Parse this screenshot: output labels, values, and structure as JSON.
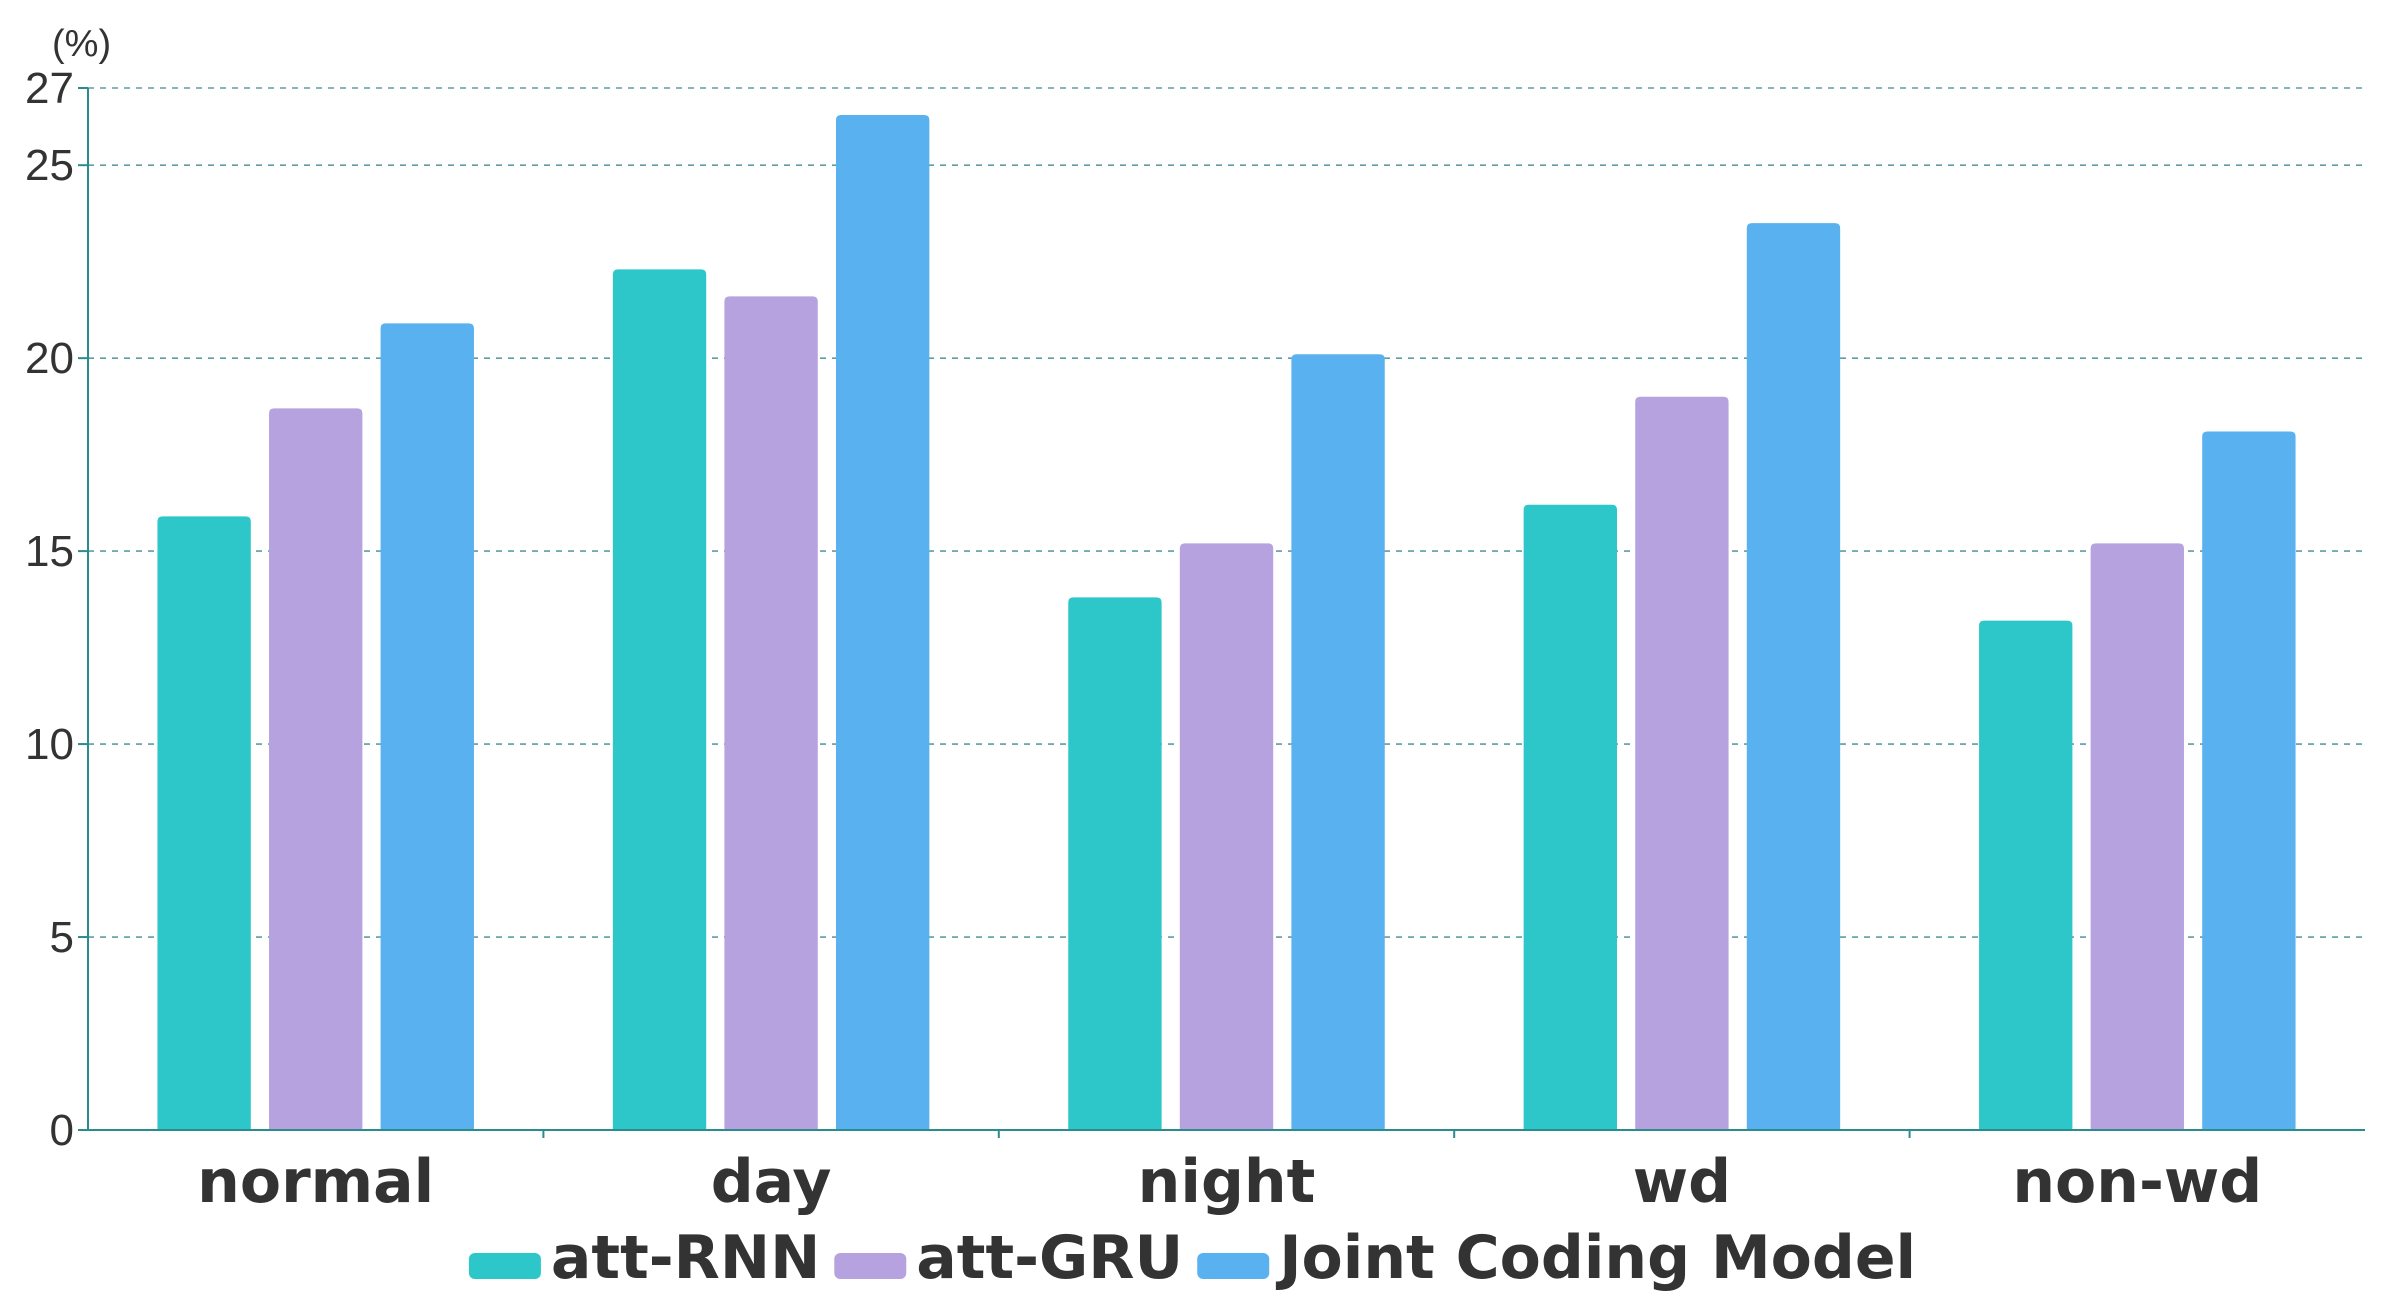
{
  "chart_data": {
    "type": "bar",
    "categories": [
      "normal",
      "day",
      "night",
      "wd",
      "non-wd"
    ],
    "series": [
      {
        "name": "att-RNN",
        "color": "#2ec7c9",
        "values": [
          15.9,
          22.3,
          13.8,
          16.2,
          13.2
        ]
      },
      {
        "name": "att-GRU",
        "color": "#b6a2de",
        "values": [
          18.7,
          21.6,
          15.2,
          19.0,
          15.2
        ]
      },
      {
        "name": "Joint Coding Model",
        "color": "#5ab1ef",
        "values": [
          20.9,
          26.3,
          20.1,
          23.5,
          18.1
        ]
      }
    ],
    "y_unit": "(%)",
    "ylim": [
      0,
      27
    ],
    "yticks": [
      0,
      5,
      10,
      15,
      20,
      25,
      27
    ],
    "grid": true,
    "legend_position": "bottom-center",
    "axis_color": "#2a8c8e",
    "grid_color": "#5e9ea0"
  }
}
